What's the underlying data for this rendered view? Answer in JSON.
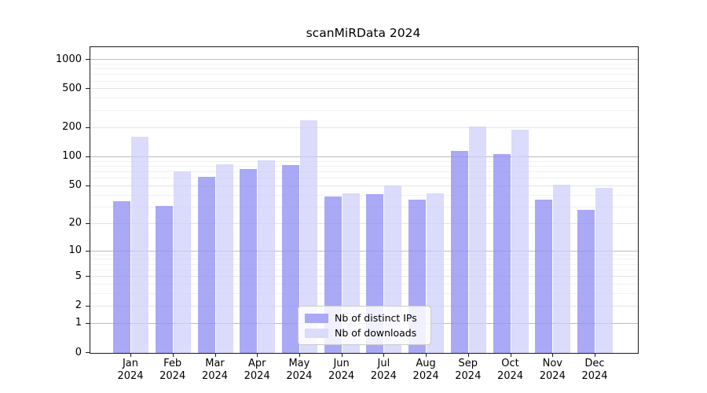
{
  "title": "scanMiRData 2024",
  "legend": {
    "items": [
      {
        "label": "Nb of distinct IPs",
        "swatch_color": "#a9a9f5"
      },
      {
        "label": "Nb of downloads",
        "swatch_color": "#dbdbfa"
      }
    ]
  },
  "axes": {
    "y_ticks": [
      0,
      1,
      2,
      5,
      10,
      20,
      50,
      100,
      200,
      500,
      1000
    ],
    "x_months": [
      "Jan",
      "Feb",
      "Mar",
      "Apr",
      "May",
      "Jun",
      "Jul",
      "Aug",
      "Sep",
      "Oct",
      "Nov",
      "Dec"
    ],
    "x_year": "2024"
  },
  "chart_data": {
    "type": "bar",
    "title": "scanMiRData 2024",
    "categories": [
      "Jan 2024",
      "Feb 2024",
      "Mar 2024",
      "Apr 2024",
      "May 2024",
      "Jun 2024",
      "Jul 2024",
      "Aug 2024",
      "Sep 2024",
      "Oct 2024",
      "Nov 2024",
      "Dec 2024"
    ],
    "series": [
      {
        "name": "Nb of distinct IPs",
        "color": "#a9a9f5",
        "fill": "rgba(145,145,243,0.78)",
        "values": [
          35,
          31,
          63,
          75,
          82,
          39,
          41,
          36,
          115,
          108,
          36,
          28
        ]
      },
      {
        "name": "Nb of downloads",
        "color": "#dbdbfa",
        "fill": "rgba(205,205,249,0.72)",
        "values": [
          162,
          71,
          85,
          92,
          240,
          42,
          51,
          42,
          205,
          190,
          52,
          48
        ]
      }
    ],
    "yscale": "log1p",
    "yticks": [
      0,
      1,
      2,
      5,
      10,
      20,
      50,
      100,
      200,
      500,
      1000
    ],
    "ylim": [
      0,
      1346
    ],
    "xlabel": "",
    "ylabel": "",
    "grid": true,
    "legend_position": "lower center"
  }
}
